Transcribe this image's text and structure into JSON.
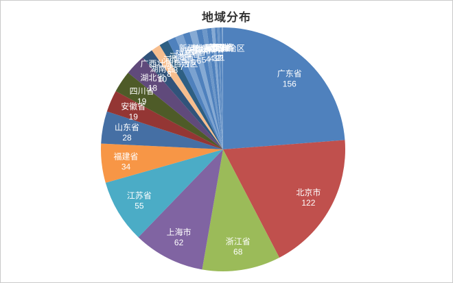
{
  "title": "地域分布",
  "chart_data": {
    "type": "pie",
    "title": "地域分布",
    "start_angle_deg": 0,
    "direction": "clockwise",
    "legend": "none",
    "label_style": "name and value inside slice, white text",
    "categories": [
      "广东省",
      "北京市",
      "浙江省",
      "上海市",
      "江苏省",
      "福建省",
      "山东省",
      "安徽省",
      "四川省",
      "湖北省",
      "湖南省",
      "广西壮族自治区",
      "河南省",
      "河北省",
      "陕西省",
      "辽宁省",
      "天津市",
      "重庆市",
      "黑龙江省",
      "新疆维吾尔自治区",
      "吉林省",
      "云南省",
      "山西省",
      "江西省",
      "贵州省"
    ],
    "values": [
      156,
      122,
      68,
      62,
      55,
      34,
      28,
      19,
      19,
      18,
      10,
      8,
      8,
      7,
      7,
      6,
      6,
      5,
      4,
      4,
      3,
      2,
      2,
      2,
      1
    ],
    "colors": [
      "#4F81BD",
      "#C0504D",
      "#9BBB59",
      "#8064A2",
      "#4BACC6",
      "#F79646",
      "#456FA4",
      "#943634",
      "#4E5B28",
      "#604A7B",
      "#31537A",
      "#F7BE8E",
      "#2E5F83",
      "#4F81BD",
      "#7BA2D0",
      "#4F81BD",
      "#86AAD4",
      "#4F81BD",
      "#6E98C9",
      "#4F81BD",
      "#86AAD4",
      "#4F81BD",
      "#6E98C9",
      "#4F81BD",
      "#86AAD4"
    ],
    "label_color": "#ffffff"
  }
}
